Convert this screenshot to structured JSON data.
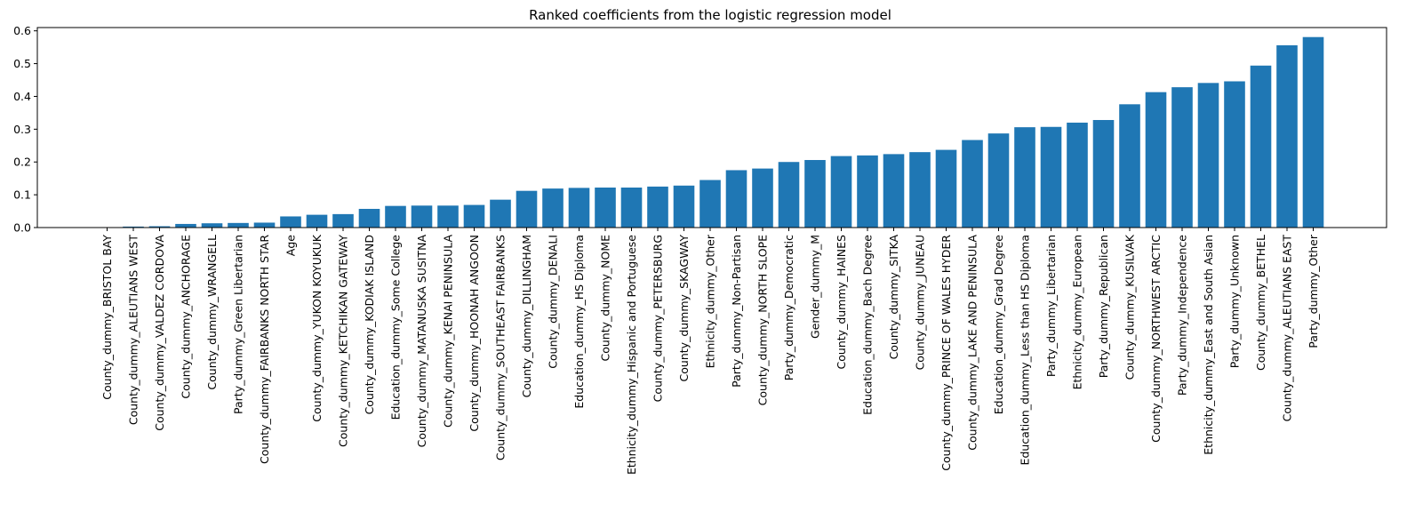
{
  "chart_data": {
    "type": "bar",
    "title": "Ranked coefficients from the logistic regression model",
    "xlabel": "",
    "ylabel": "",
    "ylim": [
      0,
      0.61
    ],
    "yticks": [
      "0.0",
      "0.1",
      "0.2",
      "0.3",
      "0.4",
      "0.5",
      "0.6"
    ],
    "grid": false,
    "bar_color": "#1f77b4",
    "categories": [
      "County_dummy_BRISTOL BAY",
      "County_dummy_ALEUTIANS WEST",
      "County_dummy_VALDEZ CORDOVA",
      "County_dummy_ANCHORAGE",
      "County_dummy_WRANGELL",
      "Party_dummy_Green Libertarian",
      "County_dummy_FAIRBANKS NORTH STAR",
      "Age",
      "County_dummy_YUKON KOYUKUK",
      "County_dummy_KETCHIKAN GATEWAY",
      "County_dummy_KODIAK ISLAND",
      "Education_dummy_Some College",
      "County_dummy_MATANUSKA SUSITNA",
      "County_dummy_KENAI PENINSULA",
      "County_dummy_HOONAH ANGOON",
      "County_dummy_SOUTHEAST FAIRBANKS",
      "County_dummy_DILLINGHAM",
      "County_dummy_DENALI",
      "Education_dummy_HS Diploma",
      "County_dummy_NOME",
      "Ethnicity_dummy_Hispanic and Portuguese",
      "County_dummy_PETERSBURG",
      "County_dummy_SKAGWAY",
      "Ethnicity_dummy_Other",
      "Party_dummy_Non-Partisan",
      "County_dummy_NORTH SLOPE",
      "Party_dummy_Democratic",
      "Gender_dummy_M",
      "County_dummy_HAINES",
      "Education_dummy_Bach Degree",
      "County_dummy_SITKA",
      "County_dummy_JUNEAU",
      "County_dummy_PRINCE OF WALES HYDER",
      "County_dummy_LAKE AND PENINSULA",
      "Education_dummy_Grad Degree",
      "Education_dummy_Less than HS Diploma",
      "Party_dummy_Libertarian",
      "Ethnicity_dummy_European",
      "Party_dummy_Republican",
      "County_dummy_KUSILVAK",
      "County_dummy_NORTHWEST ARCTIC",
      "Party_dummy_Independence",
      "Ethnicity_dummy_East and South Asian",
      "Party_dummy_Unknown",
      "County_dummy_BETHEL",
      "County_dummy_ALEUTIANS EAST",
      "Party_dummy_Other"
    ],
    "values": [
      0.0005,
      0.003,
      0.004,
      0.011,
      0.013,
      0.014,
      0.015,
      0.034,
      0.039,
      0.041,
      0.057,
      0.066,
      0.067,
      0.067,
      0.069,
      0.085,
      0.112,
      0.119,
      0.121,
      0.122,
      0.122,
      0.125,
      0.128,
      0.145,
      0.175,
      0.18,
      0.2,
      0.206,
      0.218,
      0.22,
      0.224,
      0.23,
      0.237,
      0.267,
      0.287,
      0.306,
      0.307,
      0.32,
      0.328,
      0.376,
      0.413,
      0.428,
      0.441,
      0.446,
      0.494,
      0.556,
      0.581
    ]
  }
}
